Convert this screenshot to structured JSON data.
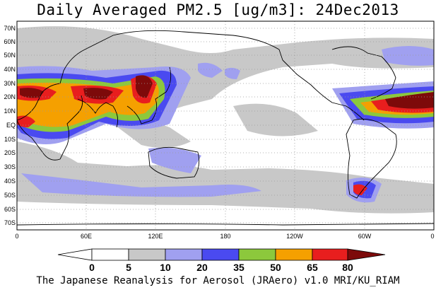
{
  "title": "Daily Averaged PM2.5 [ug/m3]: 24Dec2013",
  "credit": "The Japanese Reanalysis for Aerosol (JRAero) v1.0 MRI/KU_RIAM",
  "lat_labels": [
    "70N",
    "60N",
    "50N",
    "40N",
    "30N",
    "20N",
    "10N",
    "EQ",
    "10S",
    "20S",
    "30S",
    "40S",
    "50S",
    "60S",
    "70S"
  ],
  "lon_labels": [
    "0",
    "60E",
    "120E",
    "180",
    "120W",
    "60W",
    "0"
  ],
  "colorbar": {
    "labels": [
      "0",
      "5",
      "10",
      "20",
      "35",
      "50",
      "65",
      "80"
    ],
    "colors": [
      "#ffffff",
      "#c8c8c8",
      "#a0a0f0",
      "#4a4af0",
      "#8cc83c",
      "#f5a000",
      "#e81e1e",
      "#7d0a0a"
    ]
  },
  "map_colors": {
    "ocean": "#ffffff",
    "coast": "#000000",
    "grid": "#9a9a9a"
  }
}
